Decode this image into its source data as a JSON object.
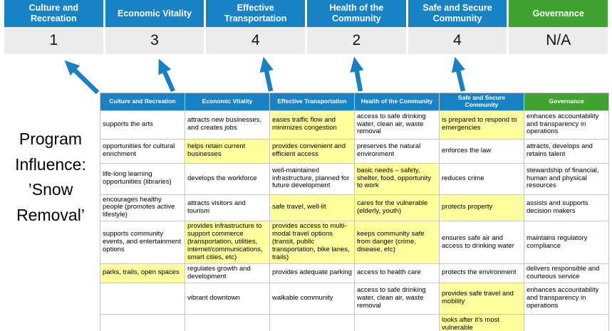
{
  "colors": {
    "header_blue": "#1783c4",
    "header_green": "#3fa32f",
    "highlight_yellow": "#ffff9e",
    "score_gray": "#ececec",
    "arrow_blue": "#1a80c4"
  },
  "header": {
    "categories": [
      {
        "label": "Culture and Recreation",
        "score": "1",
        "type": "blue"
      },
      {
        "label": "Economic Vitality",
        "score": "3",
        "type": "blue"
      },
      {
        "label": "Effective Transportation",
        "score": "4",
        "type": "blue"
      },
      {
        "label": "Health of the Community",
        "score": "2",
        "type": "blue"
      },
      {
        "label": "Safe and Secure Community",
        "score": "4",
        "type": "blue"
      },
      {
        "label": "Governance",
        "score": "N/A",
        "type": "green"
      }
    ]
  },
  "program": {
    "text": "Program\nInfluence:\n’Snow\nRemoval’"
  },
  "table": {
    "headers": [
      "Culture and Recreation",
      "Economic Vitality",
      "Effective Transportation",
      "Health of the Community",
      "Safe and Secure Community",
      "Governance"
    ],
    "rows": [
      [
        {
          "t": "supports the arts",
          "h": false
        },
        {
          "t": "attracts new businesses, and creates jobs",
          "h": false
        },
        {
          "t": "eases traffic flow and minimizes congestion",
          "h": true
        },
        {
          "t": "access to safe drinking water, clean air, waste removal",
          "h": false
        },
        {
          "t": "is prepared to respond to emergencies",
          "h": true
        },
        {
          "t": "enhances accountability and transparency in operations",
          "h": false
        }
      ],
      [
        {
          "t": "opportunities for cultural enrichment",
          "h": false
        },
        {
          "t": "helps retain current businesses",
          "h": true
        },
        {
          "t": "provides convenient and efficient access",
          "h": true
        },
        {
          "t": "preserves the natural environment",
          "h": false
        },
        {
          "t": "enforces the law",
          "h": false
        },
        {
          "t": "attracts, develops and retains talent",
          "h": false
        }
      ],
      [
        {
          "t": "life-long learning opportunities (libraries)",
          "h": false
        },
        {
          "t": "develops the workforce",
          "h": false
        },
        {
          "t": "well-maintained infrastructure, planned for future development",
          "h": false
        },
        {
          "t": "basic needs – safety, shelter, food, opportunity to work",
          "h": true
        },
        {
          "t": "reduces crime",
          "h": false
        },
        {
          "t": "stewardship of financial, human and physical resources",
          "h": false
        }
      ],
      [
        {
          "t": "encourages healthy people (promotes active lifestyle)",
          "h": false
        },
        {
          "t": "attracts visitors and tourism",
          "h": false
        },
        {
          "t": "safe travel, well-lit",
          "h": true
        },
        {
          "t": "cares for the vulnerable (elderly, youth)",
          "h": true
        },
        {
          "t": "protects property",
          "h": true
        },
        {
          "t": "assists and supports decision makers",
          "h": false
        }
      ],
      [
        {
          "t": "supports community events, and entertainment options",
          "h": false
        },
        {
          "t": "provides infrastructure to support commerce (transportation, utilities, internet/communications, smart cities, etc)",
          "h": true
        },
        {
          "t": "provides access to multi-modal travel options (transit, public transportation, bike lanes, trails)",
          "h": true
        },
        {
          "t": "keeps community safe from danger (crime, disease, etc)",
          "h": true
        },
        {
          "t": "ensures safe air and access to drinking water",
          "h": false
        },
        {
          "t": "maintains regulatory compliance",
          "h": false
        }
      ],
      [
        {
          "t": "parks, trails, open spaces",
          "h": true
        },
        {
          "t": "regulates growth and development",
          "h": false
        },
        {
          "t": "provides adequate parking",
          "h": false
        },
        {
          "t": "access to health care",
          "h": false
        },
        {
          "t": "protects the environment",
          "h": false
        },
        {
          "t": "delivers responsible and courteous service",
          "h": false
        }
      ],
      [
        {
          "t": "",
          "h": false
        },
        {
          "t": "vibrant downtown",
          "h": false
        },
        {
          "t": "walkable community",
          "h": false
        },
        {
          "t": "access to safe drinking water, clean air, waste removal",
          "h": false
        },
        {
          "t": "provides safe travel and mobility",
          "h": true
        },
        {
          "t": "enhances accountability and transparency in operations",
          "h": false
        }
      ],
      [
        {
          "t": "",
          "h": false
        },
        {
          "t": "",
          "h": false
        },
        {
          "t": "",
          "h": false
        },
        {
          "t": "",
          "h": false
        },
        {
          "t": "looks after it's most vulnerable",
          "h": true
        },
        {
          "t": "",
          "h": false
        }
      ]
    ]
  }
}
